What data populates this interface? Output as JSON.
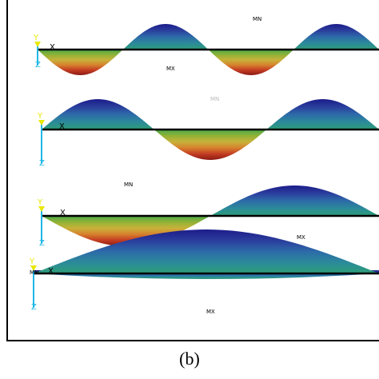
{
  "caption": "(b)",
  "axis_labels": {
    "x": "X",
    "y": "Y",
    "z": "Z"
  },
  "extreme_labels": {
    "max": "MX",
    "min": "MN"
  },
  "colors": {
    "top_band": [
      "#1c1c8a",
      "#2a3d9c",
      "#2d6aa9",
      "#2b8a9a",
      "#2e9e78"
    ],
    "bottom_band": [
      "#4aa84a",
      "#8fb236",
      "#c7b23a",
      "#d7822e",
      "#c43d22",
      "#8b1a14"
    ],
    "axis_y": "#e8e800",
    "axis_z": "#1fb8e6",
    "frame": "#000000"
  },
  "modes": [
    {
      "id": "mode-4",
      "half_waves": 4
    },
    {
      "id": "mode-3",
      "half_waves": 3
    },
    {
      "id": "mode-2",
      "half_waves": 2
    },
    {
      "id": "mode-1",
      "half_waves": 1
    }
  ]
}
